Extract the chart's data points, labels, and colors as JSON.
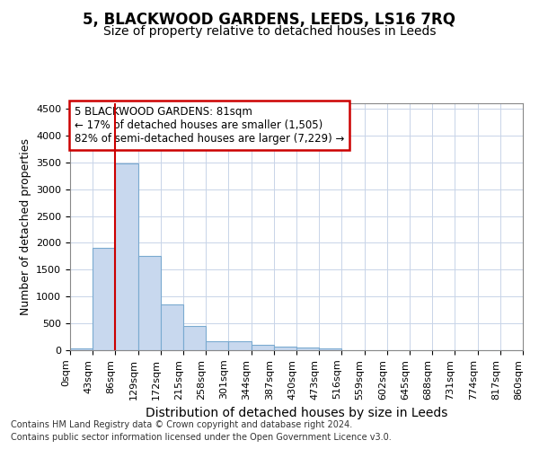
{
  "title": "5, BLACKWOOD GARDENS, LEEDS, LS16 7RQ",
  "subtitle": "Size of property relative to detached houses in Leeds",
  "xlabel": "Distribution of detached houses by size in Leeds",
  "ylabel": "Number of detached properties",
  "annotation_title": "5 BLACKWOOD GARDENS: 81sqm",
  "annotation_line2": "← 17% of detached houses are smaller (1,505)",
  "annotation_line3": "82% of semi-detached houses are larger (7,229) →",
  "footer_line1": "Contains HM Land Registry data © Crown copyright and database right 2024.",
  "footer_line2": "Contains public sector information licensed under the Open Government Licence v3.0.",
  "property_size": 81,
  "bar_edges": [
    0,
    43,
    86,
    129,
    172,
    215,
    258,
    301,
    344,
    387,
    430,
    473,
    516,
    559,
    602,
    645,
    688,
    731,
    774,
    817,
    860
  ],
  "bar_heights": [
    40,
    1900,
    3480,
    1760,
    850,
    450,
    175,
    170,
    95,
    60,
    50,
    35,
    0,
    0,
    0,
    0,
    0,
    0,
    0,
    0
  ],
  "bar_color": "#c8d8ee",
  "bar_edge_color": "#7aaad0",
  "vline_color": "#cc0000",
  "vline_x": 86,
  "annotation_box_color": "#cc0000",
  "ylim": [
    0,
    4600
  ],
  "yticks": [
    0,
    500,
    1000,
    1500,
    2000,
    2500,
    3000,
    3500,
    4000,
    4500
  ],
  "grid_color": "#c8d4e8",
  "background_color": "#ffffff",
  "axes_background": "#ffffff",
  "title_fontsize": 12,
  "subtitle_fontsize": 10,
  "xlabel_fontsize": 10,
  "ylabel_fontsize": 9,
  "tick_fontsize": 8,
  "annotation_fontsize": 8.5,
  "footer_fontsize": 7
}
